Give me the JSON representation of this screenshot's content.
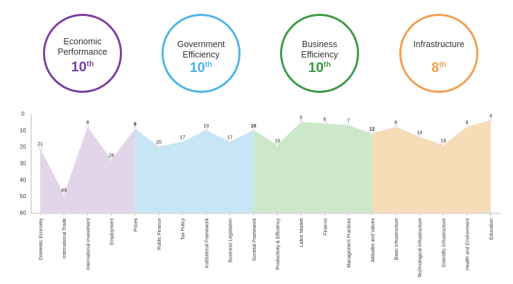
{
  "factors": [
    {
      "name": "Economic Performance",
      "rank_num": "10",
      "rank_suffix": "th",
      "color": "#7b3fa0",
      "fill": "#e2d5ea"
    },
    {
      "name": "Government Efficiency",
      "rank_num": "10",
      "rank_suffix": "th",
      "color": "#4cb5e6",
      "fill": "#c7e6f5"
    },
    {
      "name": "Business Efficiency",
      "rank_num": "10",
      "rank_suffix": "th",
      "color": "#3a9a44",
      "fill": "#cce8c9"
    },
    {
      "name": "Infrastructure",
      "rank_num": "8",
      "rank_suffix": "th",
      "color": "#f0a050",
      "fill": "#f7dcb8"
    }
  ],
  "chart_data": {
    "type": "area",
    "y_ticks": [
      0,
      10,
      20,
      30,
      40,
      50,
      60
    ],
    "ylim": [
      0,
      60
    ],
    "y_inverted": true,
    "grid": false,
    "categories": [
      "Domestic Economy",
      "International Trade",
      "International Investment",
      "Employment",
      "Prices",
      "Public Finance",
      "Tax Policy",
      "Institutional Framework",
      "Business Legislation",
      "Societal Framework",
      "Productivity & Efficiency",
      "Labor Market",
      "Finance",
      "Management Practices",
      "Attitudes and Values",
      "Basic Infrastructure",
      "Technological Infrastructure",
      "Scientific Infrastructure",
      "Health and Environment",
      "Education"
    ],
    "values": [
      21,
      49,
      8,
      28,
      9,
      20,
      17,
      10,
      17,
      10,
      19,
      5,
      6,
      7,
      12,
      8,
      14,
      19,
      8,
      4
    ],
    "series": [
      {
        "name": "Economic Performance",
        "start": 0,
        "end": 4
      },
      {
        "name": "Government Efficiency",
        "start": 4,
        "end": 9
      },
      {
        "name": "Business Efficiency",
        "start": 9,
        "end": 14
      },
      {
        "name": "Infrastructure",
        "start": 14,
        "end": 19
      }
    ]
  }
}
